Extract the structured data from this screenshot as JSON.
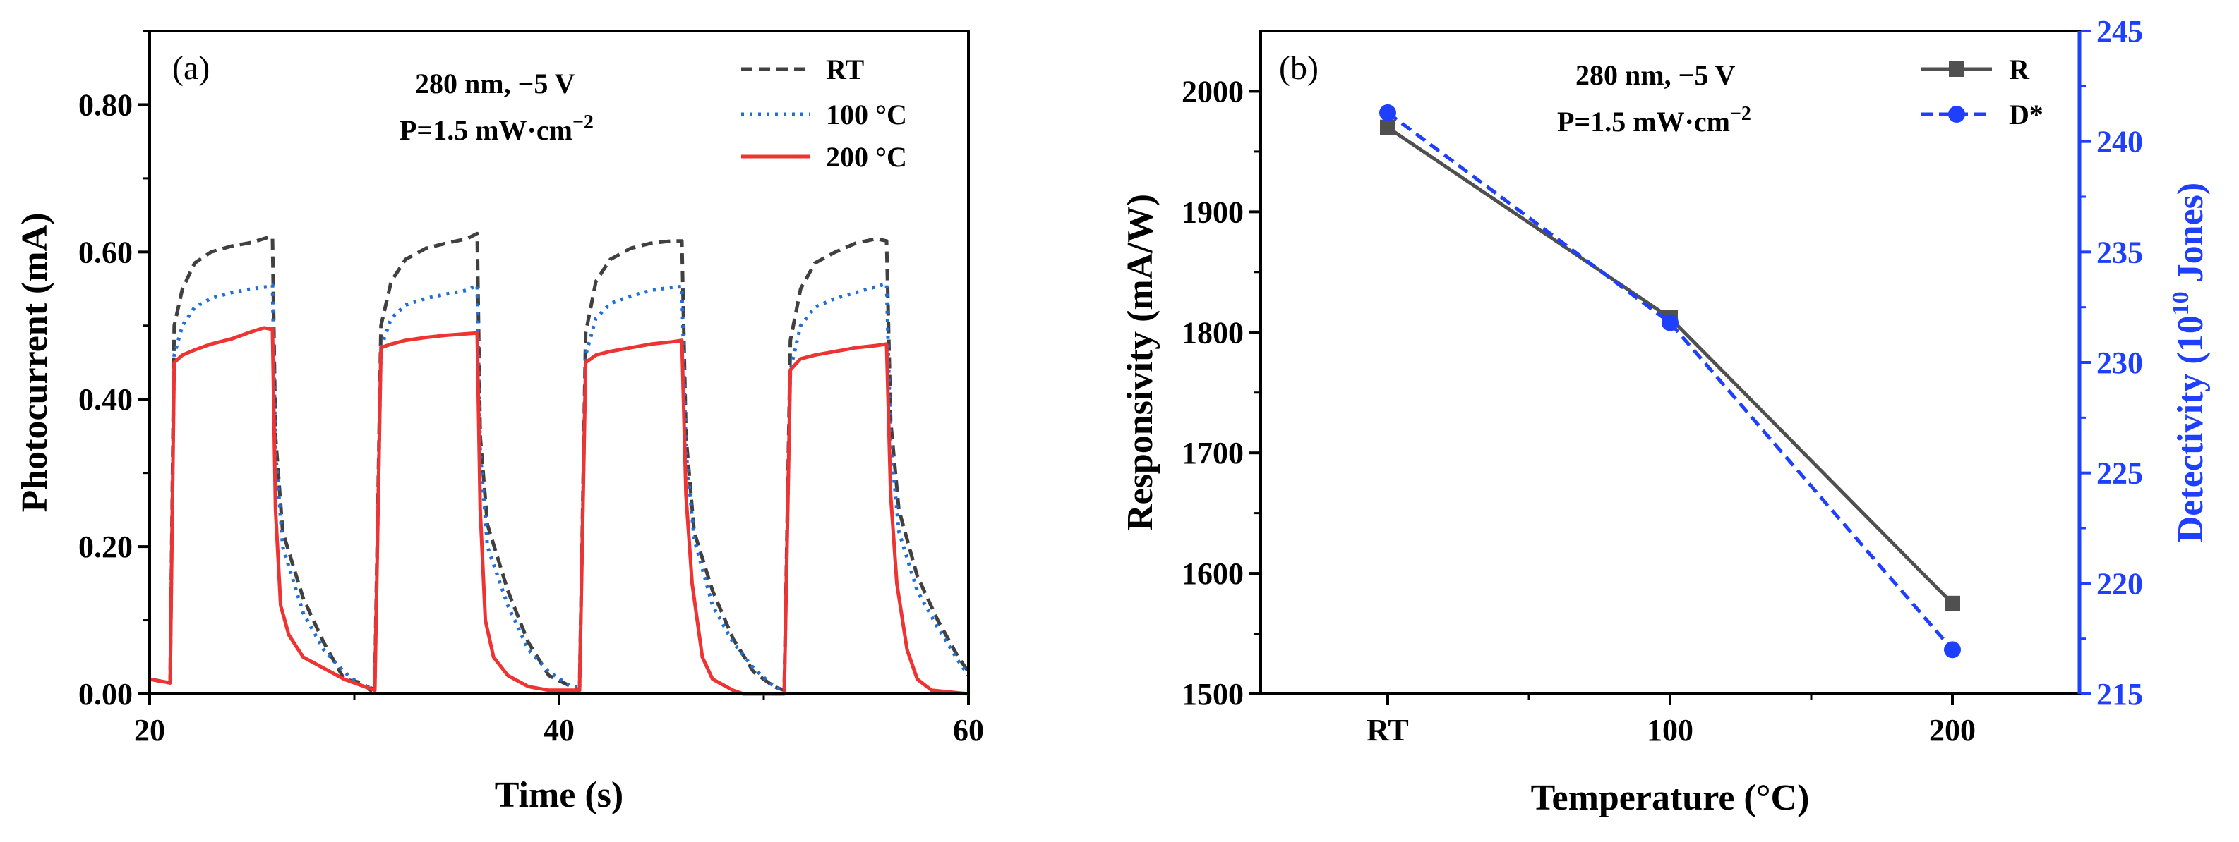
{
  "figure": {
    "colors": {
      "black": "#000000",
      "rt": "#404040",
      "t100": "#1f6fd8",
      "t200": "#ee3333",
      "responsivity": "#505050",
      "detectivity": "#1f3fff"
    }
  },
  "chart_data": [
    {
      "type": "line",
      "panel_label": "(a)",
      "title": "",
      "xlabel": "Time (s)",
      "ylabel": "Photocurrent (mA)",
      "xlim": [
        20,
        60
      ],
      "ylim": [
        0,
        0.9
      ],
      "x_ticks": [
        "20",
        "40",
        "60"
      ],
      "y_ticks": [
        "0.00",
        "0.20",
        "0.40",
        "0.60",
        "0.80"
      ],
      "annotation": {
        "line1": "280 nm, −5 V",
        "line2_base": "P=1.5 mW·cm",
        "line2_sup": "−2"
      },
      "legend": [
        "RT",
        "100 °C",
        "200 °C"
      ],
      "series": [
        {
          "name": "RT",
          "style": "dashed",
          "points": [
            [
              20,
              0.02
            ],
            [
              21,
              0.015
            ],
            [
              21.2,
              0.5
            ],
            [
              21.6,
              0.55
            ],
            [
              22.2,
              0.585
            ],
            [
              23,
              0.6
            ],
            [
              24,
              0.608
            ],
            [
              25,
              0.613
            ],
            [
              25.8,
              0.62
            ],
            [
              26.0,
              0.62
            ],
            [
              26.15,
              0.35
            ],
            [
              26.5,
              0.22
            ],
            [
              27.5,
              0.13
            ],
            [
              28.5,
              0.07
            ],
            [
              29.5,
              0.02
            ],
            [
              30.4,
              0.015
            ],
            [
              30.8,
              0.005
            ],
            [
              31.0,
              0.02
            ],
            [
              31.3,
              0.5
            ],
            [
              31.8,
              0.56
            ],
            [
              32.5,
              0.59
            ],
            [
              33.5,
              0.605
            ],
            [
              34.5,
              0.612
            ],
            [
              35.5,
              0.618
            ],
            [
              36.0,
              0.625
            ],
            [
              36.15,
              0.35
            ],
            [
              36.5,
              0.23
            ],
            [
              37.5,
              0.14
            ],
            [
              38.5,
              0.07
            ],
            [
              39.5,
              0.025
            ],
            [
              40.6,
              0.01
            ],
            [
              41.0,
              0.005
            ],
            [
              41.3,
              0.49
            ],
            [
              41.8,
              0.56
            ],
            [
              42.5,
              0.59
            ],
            [
              43.5,
              0.605
            ],
            [
              44.5,
              0.612
            ],
            [
              45.5,
              0.615
            ],
            [
              46.0,
              0.615
            ],
            [
              46.2,
              0.35
            ],
            [
              46.6,
              0.22
            ],
            [
              47.5,
              0.14
            ],
            [
              48.5,
              0.075
            ],
            [
              49.5,
              0.03
            ],
            [
              50.5,
              0.01
            ],
            [
              51.0,
              0.005
            ],
            [
              51.3,
              0.48
            ],
            [
              51.8,
              0.55
            ],
            [
              52.5,
              0.585
            ],
            [
              53.5,
              0.6
            ],
            [
              54.5,
              0.612
            ],
            [
              55.5,
              0.618
            ],
            [
              56.0,
              0.615
            ],
            [
              56.2,
              0.37
            ],
            [
              56.6,
              0.25
            ],
            [
              57.5,
              0.16
            ],
            [
              58.5,
              0.1
            ],
            [
              59.5,
              0.05
            ],
            [
              60,
              0.03
            ]
          ]
        },
        {
          "name": "100 °C",
          "style": "dotted",
          "points": [
            [
              20,
              0.02
            ],
            [
              21,
              0.015
            ],
            [
              21.2,
              0.46
            ],
            [
              21.6,
              0.5
            ],
            [
              22.2,
              0.525
            ],
            [
              23,
              0.537
            ],
            [
              24,
              0.545
            ],
            [
              25,
              0.55
            ],
            [
              25.8,
              0.553
            ],
            [
              26.0,
              0.555
            ],
            [
              26.15,
              0.33
            ],
            [
              26.5,
              0.2
            ],
            [
              27.5,
              0.11
            ],
            [
              28.5,
              0.06
            ],
            [
              29.5,
              0.03
            ],
            [
              30.4,
              0.01
            ],
            [
              31.0,
              0.01
            ],
            [
              31.3,
              0.47
            ],
            [
              31.8,
              0.51
            ],
            [
              32.5,
              0.528
            ],
            [
              33.5,
              0.537
            ],
            [
              34.5,
              0.543
            ],
            [
              35.5,
              0.548
            ],
            [
              36.0,
              0.555
            ],
            [
              36.15,
              0.33
            ],
            [
              36.5,
              0.2
            ],
            [
              37.5,
              0.12
            ],
            [
              38.5,
              0.06
            ],
            [
              39.5,
              0.03
            ],
            [
              40.6,
              0.01
            ],
            [
              41.0,
              0.01
            ],
            [
              41.3,
              0.46
            ],
            [
              41.8,
              0.51
            ],
            [
              42.5,
              0.53
            ],
            [
              43.5,
              0.54
            ],
            [
              44.5,
              0.548
            ],
            [
              45.5,
              0.552
            ],
            [
              46.0,
              0.553
            ],
            [
              46.2,
              0.33
            ],
            [
              46.6,
              0.21
            ],
            [
              47.5,
              0.12
            ],
            [
              48.5,
              0.07
            ],
            [
              49.5,
              0.035
            ],
            [
              50.5,
              0.01
            ],
            [
              51.0,
              0.005
            ],
            [
              51.3,
              0.44
            ],
            [
              51.8,
              0.5
            ],
            [
              52.5,
              0.525
            ],
            [
              53.5,
              0.537
            ],
            [
              54.5,
              0.545
            ],
            [
              55.5,
              0.553
            ],
            [
              56.0,
              0.557
            ],
            [
              56.2,
              0.34
            ],
            [
              56.6,
              0.22
            ],
            [
              57.5,
              0.14
            ],
            [
              58.5,
              0.09
            ],
            [
              59.5,
              0.045
            ],
            [
              60,
              0.025
            ]
          ]
        },
        {
          "name": "200 °C",
          "style": "solid",
          "points": [
            [
              20,
              0.02
            ],
            [
              21,
              0.015
            ],
            [
              21.2,
              0.45
            ],
            [
              21.6,
              0.46
            ],
            [
              22.2,
              0.467
            ],
            [
              23,
              0.475
            ],
            [
              24,
              0.482
            ],
            [
              25,
              0.492
            ],
            [
              25.6,
              0.497
            ],
            [
              26.0,
              0.495
            ],
            [
              26.15,
              0.25
            ],
            [
              26.4,
              0.12
            ],
            [
              26.8,
              0.08
            ],
            [
              27.5,
              0.05
            ],
            [
              28.5,
              0.035
            ],
            [
              29.5,
              0.02
            ],
            [
              30.5,
              0.01
            ],
            [
              31.0,
              0.005
            ],
            [
              31.3,
              0.47
            ],
            [
              31.8,
              0.475
            ],
            [
              32.5,
              0.48
            ],
            [
              33.5,
              0.484
            ],
            [
              34.5,
              0.487
            ],
            [
              35.5,
              0.489
            ],
            [
              36.0,
              0.49
            ],
            [
              36.15,
              0.25
            ],
            [
              36.4,
              0.1
            ],
            [
              36.8,
              0.05
            ],
            [
              37.5,
              0.025
            ],
            [
              38.5,
              0.01
            ],
            [
              39.5,
              0.005
            ],
            [
              41.0,
              0.005
            ],
            [
              41.3,
              0.45
            ],
            [
              41.8,
              0.46
            ],
            [
              42.5,
              0.465
            ],
            [
              43.5,
              0.47
            ],
            [
              44.5,
              0.475
            ],
            [
              45.5,
              0.478
            ],
            [
              46.0,
              0.48
            ],
            [
              46.2,
              0.27
            ],
            [
              46.5,
              0.15
            ],
            [
              47.0,
              0.05
            ],
            [
              47.5,
              0.02
            ],
            [
              48.5,
              0.005
            ],
            [
              49,
              0.0
            ],
            [
              51.0,
              0.0
            ],
            [
              51.3,
              0.44
            ],
            [
              51.8,
              0.455
            ],
            [
              52.5,
              0.46
            ],
            [
              53.5,
              0.465
            ],
            [
              54.5,
              0.47
            ],
            [
              55.5,
              0.473
            ],
            [
              56.0,
              0.475
            ],
            [
              56.2,
              0.27
            ],
            [
              56.5,
              0.15
            ],
            [
              57.0,
              0.06
            ],
            [
              57.5,
              0.02
            ],
            [
              58.2,
              0.005
            ],
            [
              60,
              0.0
            ]
          ]
        }
      ]
    },
    {
      "type": "line",
      "panel_label": "(b)",
      "title": "",
      "xlabel": "Temperature (°C)",
      "ylabel": "Responsivity (mA/W)",
      "y2label_base": "Detectivity (10",
      "y2label_sup": "10",
      "y2label_end": " Jones)",
      "categories": [
        "RT",
        "100",
        "200"
      ],
      "ylim": [
        1500,
        2050
      ],
      "y_ticks": [
        "1500",
        "1600",
        "1700",
        "1800",
        "1900",
        "2000"
      ],
      "y2lim": [
        215,
        245
      ],
      "y2_ticks": [
        "215",
        "220",
        "225",
        "230",
        "235",
        "240",
        "245"
      ],
      "annotation": {
        "line1": "280 nm, −5 V",
        "line2_base": "P=1.5 mW·cm",
        "line2_sup": "−2"
      },
      "legend": [
        "R",
        "D*"
      ],
      "series": [
        {
          "name": "R",
          "axis": "left",
          "marker": "square",
          "style": "solid",
          "values": [
            1970,
            1812,
            1575
          ]
        },
        {
          "name": "D*",
          "axis": "right",
          "marker": "circle",
          "style": "dashed",
          "values": [
            241.3,
            231.8,
            217.0
          ]
        }
      ]
    }
  ]
}
